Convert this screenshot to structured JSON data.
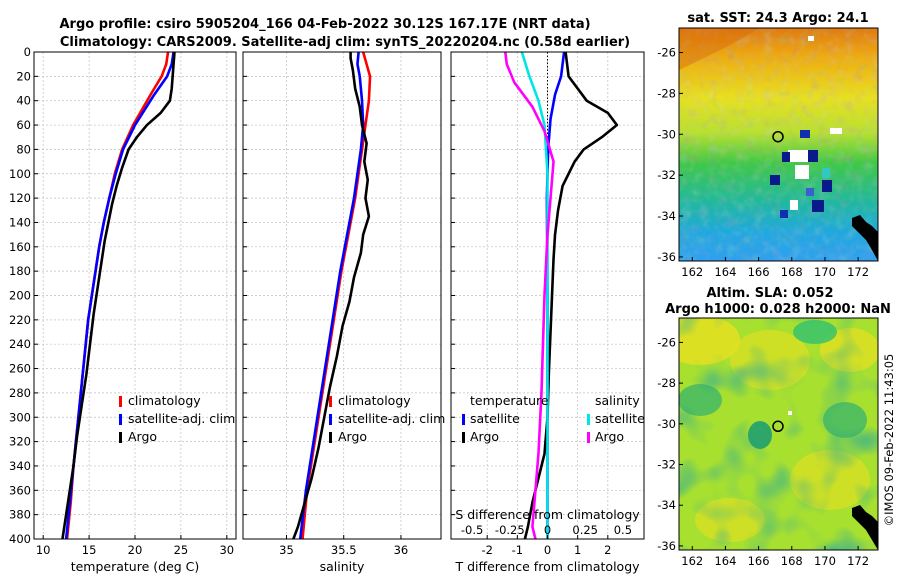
{
  "title_line1": "Argo profile: csiro 5905204_166 04-Feb-2022 30.12S 167.17E (NRT data)",
  "title_line2": "Climatology: CARS2009. Satellite-adj clim: synTS_20220204.nc (0.58d earlier)",
  "watermark": "©IMOS 09-Feb-2022 11:43:05",
  "colors": {
    "climatology": "#ff0000",
    "satellite": "#0000ff",
    "argo": "#000000",
    "sal_satellite": "#00e5e5",
    "sal_argo": "#ff00ff"
  },
  "chart_data": [
    {
      "type": "line",
      "name": "temperature-profile",
      "xlabel": "temperature (deg C)",
      "xlim": [
        9,
        31
      ],
      "xticks": [
        10,
        15,
        20,
        25,
        30
      ],
      "ylim": [
        0,
        400
      ],
      "yticks": [
        0,
        20,
        40,
        60,
        80,
        100,
        120,
        140,
        160,
        180,
        200,
        220,
        240,
        260,
        280,
        300,
        320,
        340,
        360,
        380,
        400
      ],
      "legend": [
        "climatology",
        "satellite-adj. clim",
        "Argo"
      ],
      "series": [
        {
          "name": "climatology",
          "color": "#ff0000",
          "x": [
            23.6,
            23.4,
            22.9,
            21.7,
            19.8,
            18.6,
            17.8,
            17.2,
            16.6,
            16.1,
            15.7,
            15.3,
            14.9,
            14.5,
            14.1,
            13.7,
            13.3,
            13.0,
            12.6
          ],
          "y": [
            0,
            10,
            20,
            35,
            60,
            80,
            100,
            120,
            140,
            160,
            180,
            200,
            220,
            250,
            280,
            310,
            340,
            370,
            400
          ]
        },
        {
          "name": "satellite-adj. clim",
          "color": "#0000ff",
          "x": [
            24.2,
            24.0,
            23.5,
            22.1,
            20.0,
            18.7,
            17.9,
            17.2,
            16.6,
            16.1,
            15.7,
            15.3,
            14.9,
            14.5,
            14.1,
            13.7,
            13.3,
            12.9,
            12.5
          ],
          "y": [
            0,
            10,
            20,
            35,
            60,
            80,
            100,
            120,
            140,
            160,
            180,
            200,
            220,
            250,
            280,
            310,
            340,
            370,
            400
          ]
        },
        {
          "name": "Argo",
          "color": "#000000",
          "x": [
            24.3,
            24.2,
            24.1,
            24.0,
            23.8,
            22.8,
            21.3,
            20.2,
            19.3,
            18.6,
            18.0,
            17.5,
            17.1,
            16.7,
            16.3,
            15.9,
            15.5,
            15.1,
            14.7,
            14.2,
            13.7,
            13.3,
            12.9,
            12.5,
            12.1
          ],
          "y": [
            0,
            10,
            20,
            30,
            40,
            50,
            60,
            70,
            80,
            95,
            110,
            125,
            140,
            155,
            175,
            195,
            215,
            240,
            265,
            290,
            315,
            340,
            360,
            380,
            400
          ]
        }
      ]
    },
    {
      "type": "line",
      "name": "salinity-profile",
      "xlabel": "salinity",
      "xlim": [
        34.62,
        36.35
      ],
      "xticks": [
        35,
        35.5,
        36
      ],
      "xtick_labels": [
        "35",
        "35.5",
        "36"
      ],
      "ylim": [
        0,
        400
      ],
      "legend": [
        "climatology",
        "satellite-adj. clim",
        "Argo"
      ],
      "series": [
        {
          "name": "climatology",
          "color": "#ff0000",
          "x": [
            35.67,
            35.7,
            35.73,
            35.72,
            35.69,
            35.66,
            35.63,
            35.6,
            35.56,
            35.52,
            35.48,
            35.43,
            35.38,
            35.33,
            35.28,
            35.23,
            35.18,
            35.14
          ],
          "y": [
            0,
            10,
            20,
            40,
            60,
            80,
            100,
            120,
            140,
            160,
            180,
            210,
            240,
            270,
            300,
            330,
            360,
            400
          ]
        },
        {
          "name": "satellite-adj. clim",
          "color": "#0000ff",
          "x": [
            35.63,
            35.62,
            35.64,
            35.66,
            35.67,
            35.65,
            35.62,
            35.59,
            35.55,
            35.51,
            35.47,
            35.42,
            35.37,
            35.32,
            35.27,
            35.22,
            35.17,
            35.12
          ],
          "y": [
            0,
            10,
            20,
            40,
            60,
            80,
            100,
            120,
            140,
            160,
            180,
            210,
            240,
            270,
            300,
            330,
            360,
            400
          ]
        },
        {
          "name": "Argo",
          "color": "#000000",
          "x": [
            35.56,
            35.56,
            35.58,
            35.6,
            35.64,
            35.66,
            35.7,
            35.68,
            35.71,
            35.69,
            35.72,
            35.67,
            35.65,
            35.59,
            35.55,
            35.49,
            35.44,
            35.38,
            35.33,
            35.28,
            35.22,
            35.16,
            35.1,
            35.06
          ],
          "y": [
            0,
            5,
            15,
            30,
            45,
            60,
            75,
            90,
            105,
            120,
            135,
            150,
            165,
            185,
            205,
            225,
            250,
            275,
            300,
            325,
            350,
            370,
            390,
            400
          ]
        }
      ]
    },
    {
      "type": "line",
      "name": "difference-profile",
      "xlabel": "T difference from climatology",
      "top_axis_label": "S difference from climatology",
      "xlim": [
        -3.2,
        3.2
      ],
      "xticks": [
        -2,
        -1,
        0,
        1,
        2
      ],
      "top_ticks": [
        -0.5,
        -0.25,
        0,
        0.25,
        0.5
      ],
      "top_tick_labels": [
        "-0.5",
        "-0.25",
        "0",
        "0.25",
        "0.5"
      ],
      "ylim": [
        0,
        400
      ],
      "legend_temperature_title": "temperature",
      "legend_salinity_title": "salinity",
      "legend_temperature": [
        "satellite",
        "Argo"
      ],
      "legend_salinity": [
        "satellite",
        "Argo"
      ],
      "series": [
        {
          "name": "T satellite",
          "color": "#0000ff",
          "x": [
            0.55,
            0.5,
            0.45,
            0.25,
            0.1,
            0.02,
            -0.02,
            0.0,
            0.0,
            0.0
          ],
          "y": [
            0,
            10,
            20,
            35,
            55,
            80,
            120,
            200,
            300,
            400
          ]
        },
        {
          "name": "T Argo",
          "color": "#000000",
          "x": [
            0.6,
            0.7,
            1.3,
            2.0,
            2.3,
            1.8,
            1.2,
            0.9,
            0.7,
            0.5,
            0.35,
            0.25,
            0.2,
            0.15,
            0.1,
            0.05,
            0.0,
            -0.1,
            -0.3,
            -0.5,
            -0.65,
            -0.75
          ],
          "y": [
            0,
            20,
            40,
            50,
            60,
            70,
            80,
            90,
            100,
            110,
            130,
            150,
            170,
            200,
            230,
            260,
            300,
            330,
            350,
            370,
            390,
            400
          ]
        },
        {
          "name": "S satellite",
          "color": "#00e5e5",
          "x": [
            -0.17,
            -0.12,
            -0.06,
            -0.02,
            0.0,
            0.0,
            0.0,
            0.0
          ],
          "y": [
            0,
            20,
            40,
            60,
            100,
            200,
            300,
            400
          ]
        },
        {
          "name": "S Argo",
          "color": "#ff00ff",
          "x": [
            -0.28,
            -0.27,
            -0.22,
            -0.1,
            -0.02,
            0.04,
            0.0,
            -0.02,
            -0.04,
            -0.06,
            -0.08,
            -0.1,
            -0.08
          ],
          "y": [
            0,
            10,
            25,
            45,
            65,
            90,
            150,
            200,
            280,
            330,
            360,
            390,
            400
          ]
        }
      ]
    },
    {
      "type": "heatmap",
      "name": "sst-map",
      "title": "sat. SST: 24.3 Argo: 24.1",
      "xlim": [
        161.2,
        173.2
      ],
      "ylim": [
        -36.2,
        -24.8
      ],
      "xticks": [
        162,
        164,
        166,
        168,
        170,
        172
      ],
      "yticks": [
        -26,
        -28,
        -30,
        -32,
        -34,
        -36
      ],
      "marker": {
        "lon": 167.17,
        "lat": -30.12
      }
    },
    {
      "type": "heatmap",
      "name": "sla-map",
      "title_line1": "Altim. SLA: 0.052",
      "title_line2": "Argo h1000: 0.028 h2000: NaN",
      "xlim": [
        161.2,
        173.2
      ],
      "ylim": [
        -36.2,
        -24.8
      ],
      "xticks": [
        162,
        164,
        166,
        168,
        170,
        172
      ],
      "yticks": [
        -26,
        -28,
        -30,
        -32,
        -34,
        -36
      ],
      "marker": {
        "lon": 167.17,
        "lat": -30.12
      }
    }
  ]
}
